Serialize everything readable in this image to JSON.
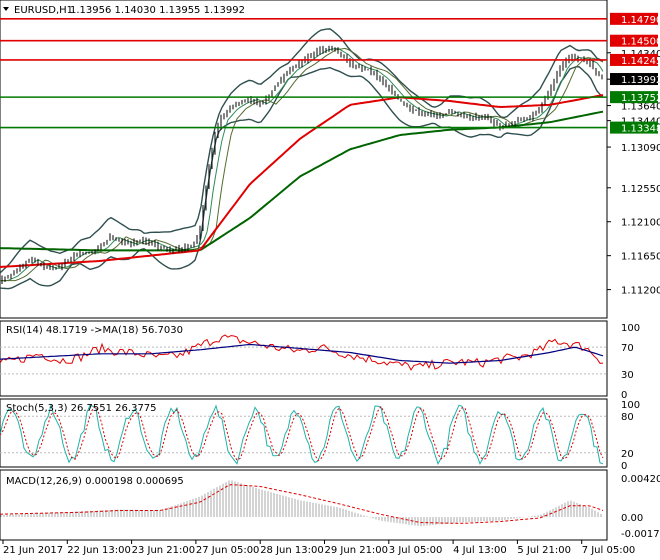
{
  "chart_data": {
    "type": "line",
    "symbol": "EURUSD,H1",
    "ohlc": "1.13956 1.14030 1.13955 1.13992",
    "price_axis": {
      "ylim": [
        1.1085,
        1.15
      ],
      "ticks": [
        "1.14340",
        "1.13990",
        "1.13640",
        "1.13440",
        "1.13090",
        "1.12550",
        "1.12100",
        "1.11650",
        "1.11200"
      ],
      "tick_values": [
        1.1434,
        1.1399,
        1.1364,
        1.1344,
        1.1309,
        1.1255,
        1.121,
        1.1165,
        1.112
      ]
    },
    "levels": [
      {
        "value": 1.1479,
        "label": "1.14790",
        "color": "#e00000"
      },
      {
        "value": 1.145,
        "label": "1.14500",
        "color": "#e00000"
      },
      {
        "value": 1.14245,
        "label": "1.14245",
        "color": "#e00000"
      },
      {
        "value": 1.13752,
        "label": "1.13752",
        "color": "#007a00"
      },
      {
        "value": 1.13348,
        "label": "1.13348",
        "color": "#007a00"
      }
    ],
    "current_price": {
      "value": 1.13992,
      "label": "1.13992"
    },
    "time_axis": [
      "21 Jun 2017",
      "22 Jun 13:00",
      "23 Jun 21:00",
      "27 Jun 05:00",
      "28 Jun 13:00",
      "29 Jun 21:00",
      "3 Jul 05:00",
      "4 Jul 13:00",
      "5 Jul 21:00",
      "7 Jul 05:00"
    ],
    "close_anchors": [
      [
        0,
        1.1132
      ],
      [
        10,
        1.1138
      ],
      [
        20,
        1.115
      ],
      [
        30,
        1.116
      ],
      [
        40,
        1.1152
      ],
      [
        50,
        1.1148
      ],
      [
        60,
        1.115
      ],
      [
        70,
        1.1162
      ],
      [
        80,
        1.117
      ],
      [
        90,
        1.1168
      ],
      [
        100,
        1.1176
      ],
      [
        110,
        1.119
      ],
      [
        120,
        1.1184
      ],
      [
        130,
        1.118
      ],
      [
        140,
        1.1186
      ],
      [
        150,
        1.1182
      ],
      [
        160,
        1.1176
      ],
      [
        170,
        1.1172
      ],
      [
        180,
        1.1174
      ],
      [
        190,
        1.1178
      ],
      [
        195,
        1.1182
      ],
      [
        200,
        1.12
      ],
      [
        205,
        1.125
      ],
      [
        210,
        1.129
      ],
      [
        215,
        1.1325
      ],
      [
        220,
        1.1345
      ],
      [
        230,
        1.136
      ],
      [
        240,
        1.1368
      ],
      [
        250,
        1.1372
      ],
      [
        260,
        1.1366
      ],
      [
        270,
        1.138
      ],
      [
        280,
        1.1398
      ],
      [
        290,
        1.1412
      ],
      [
        300,
        1.142
      ],
      [
        310,
        1.143
      ],
      [
        320,
        1.1438
      ],
      [
        330,
        1.144
      ],
      [
        340,
        1.1432
      ],
      [
        350,
        1.142
      ],
      [
        360,
        1.1414
      ],
      [
        370,
        1.141
      ],
      [
        380,
        1.14
      ],
      [
        390,
        1.1385
      ],
      [
        400,
        1.137
      ],
      [
        410,
        1.136
      ],
      [
        420,
        1.1355
      ],
      [
        430,
        1.1352
      ],
      [
        440,
        1.135
      ],
      [
        450,
        1.1356
      ],
      [
        460,
        1.1352
      ],
      [
        470,
        1.1348
      ],
      [
        480,
        1.135
      ],
      [
        490,
        1.1346
      ],
      [
        500,
        1.1335
      ],
      [
        510,
        1.134
      ],
      [
        520,
        1.1345
      ],
      [
        530,
        1.1348
      ],
      [
        540,
        1.136
      ],
      [
        550,
        1.1385
      ],
      [
        560,
        1.1415
      ],
      [
        570,
        1.1428
      ],
      [
        580,
        1.1426
      ],
      [
        590,
        1.142
      ],
      [
        597,
        1.1405
      ],
      [
        603,
        1.1399
      ]
    ],
    "ma_red": [
      [
        0,
        1.115
      ],
      [
        100,
        1.1158
      ],
      [
        200,
        1.1172
      ],
      [
        250,
        1.126
      ],
      [
        300,
        1.132
      ],
      [
        350,
        1.1365
      ],
      [
        400,
        1.1375
      ],
      [
        450,
        1.137
      ],
      [
        500,
        1.1362
      ],
      [
        550,
        1.1365
      ],
      [
        603,
        1.1378
      ]
    ],
    "ma_green": [
      [
        0,
        1.1175
      ],
      [
        100,
        1.1172
      ],
      [
        200,
        1.1172
      ],
      [
        250,
        1.1215
      ],
      [
        300,
        1.127
      ],
      [
        350,
        1.1306
      ],
      [
        400,
        1.1325
      ],
      [
        450,
        1.1332
      ],
      [
        500,
        1.1335
      ],
      [
        550,
        1.1342
      ],
      [
        603,
        1.1356
      ]
    ],
    "rsi": {
      "label": "RSI(14) 48.1719 ->MA(18) 56.7030",
      "ticks": [
        "100",
        "70",
        "30",
        "0"
      ],
      "tick_values": [
        100,
        70,
        30,
        0
      ],
      "anchors": [
        [
          0,
          45
        ],
        [
          20,
          52
        ],
        [
          40,
          60
        ],
        [
          60,
          50
        ],
        [
          80,
          55
        ],
        [
          100,
          68
        ],
        [
          120,
          63
        ],
        [
          140,
          60
        ],
        [
          160,
          54
        ],
        [
          180,
          58
        ],
        [
          200,
          72
        ],
        [
          220,
          85
        ],
        [
          240,
          80
        ],
        [
          260,
          74
        ],
        [
          280,
          68
        ],
        [
          300,
          64
        ],
        [
          320,
          70
        ],
        [
          340,
          62
        ],
        [
          360,
          55
        ],
        [
          380,
          50
        ],
        [
          400,
          43
        ],
        [
          420,
          40
        ],
        [
          440,
          45
        ],
        [
          460,
          48
        ],
        [
          480,
          46
        ],
        [
          500,
          52
        ],
        [
          520,
          55
        ],
        [
          540,
          65
        ],
        [
          555,
          80
        ],
        [
          570,
          75
        ],
        [
          585,
          70
        ],
        [
          595,
          58
        ],
        [
          603,
          48
        ]
      ],
      "ma_anchors": [
        [
          0,
          52
        ],
        [
          50,
          56
        ],
        [
          100,
          60
        ],
        [
          150,
          60
        ],
        [
          200,
          66
        ],
        [
          250,
          74
        ],
        [
          300,
          68
        ],
        [
          350,
          62
        ],
        [
          400,
          50
        ],
        [
          450,
          46
        ],
        [
          500,
          50
        ],
        [
          550,
          62
        ],
        [
          575,
          70
        ],
        [
          603,
          57
        ]
      ]
    },
    "stoch": {
      "label": "Stoch(5,3,3) 26.7551 26.3775",
      "ticks": [
        "100",
        "80",
        "20",
        "0"
      ],
      "tick_values": [
        100,
        80,
        20,
        0
      ]
    },
    "macd": {
      "label": "MACD(12,26,9) 0.000198 0.000695",
      "ticks": [
        "0.004208",
        "0.00",
        "-0.001734"
      ],
      "tick_values": [
        0.004208,
        0,
        -0.001734
      ],
      "hist_anchors": [
        [
          0,
          0.0002
        ],
        [
          40,
          0.0004
        ],
        [
          80,
          0.0006
        ],
        [
          120,
          0.0008
        ],
        [
          160,
          0.0007
        ],
        [
          200,
          0.0022
        ],
        [
          230,
          0.004
        ],
        [
          260,
          0.003
        ],
        [
          300,
          0.0018
        ],
        [
          340,
          0.001
        ],
        [
          380,
          -0.0004
        ],
        [
          420,
          -0.001
        ],
        [
          460,
          -0.0006
        ],
        [
          500,
          -0.0004
        ],
        [
          540,
          0.0002
        ],
        [
          570,
          0.0018
        ],
        [
          590,
          0.001
        ],
        [
          603,
          0.0002
        ]
      ],
      "signal_anchors": [
        [
          0,
          0.0003
        ],
        [
          40,
          0.0004
        ],
        [
          80,
          0.0005
        ],
        [
          120,
          0.0007
        ],
        [
          160,
          0.0007
        ],
        [
          200,
          0.0016
        ],
        [
          230,
          0.0035
        ],
        [
          260,
          0.0033
        ],
        [
          300,
          0.0024
        ],
        [
          340,
          0.0014
        ],
        [
          380,
          0.0003
        ],
        [
          420,
          -0.0006
        ],
        [
          460,
          -0.0007
        ],
        [
          500,
          -0.0005
        ],
        [
          540,
          -0.0001
        ],
        [
          570,
          0.0012
        ],
        [
          590,
          0.0012
        ],
        [
          603,
          0.0007
        ]
      ]
    }
  }
}
